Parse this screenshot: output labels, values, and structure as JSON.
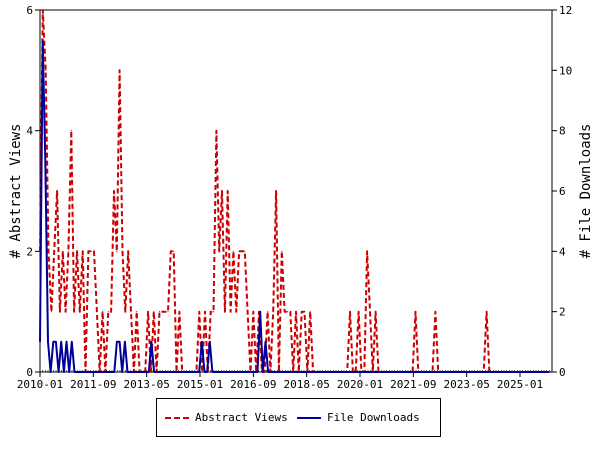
{
  "chart_data": {
    "type": "line",
    "title": "",
    "xlabel": "",
    "ylabel_left": "# Abstract Views",
    "ylabel_right": "# File Downloads",
    "x_tick_labels": [
      "2010-01",
      "2011-09",
      "2013-05",
      "2015-01",
      "2016-09",
      "2018-05",
      "2020-01",
      "2021-09",
      "2023-05",
      "2025-01"
    ],
    "y_left_ticks": [
      "0",
      "2",
      "4",
      "6"
    ],
    "y_right_ticks": [
      "0",
      "2",
      "4",
      "6",
      "8",
      "10",
      "12"
    ],
    "y_left_lim": [
      0,
      6
    ],
    "y_right_lim": [
      0,
      12
    ],
    "x_range": [
      "2010-01",
      "2026-01"
    ],
    "legend_position": "bottom",
    "grid": false,
    "series": [
      {
        "name": "Abstract Views",
        "color": "#cc0000",
        "style": "dashed",
        "axis": "left",
        "values": [
          2,
          6,
          5,
          2,
          1,
          2,
          3,
          1,
          2,
          1,
          2,
          4,
          1,
          2,
          1,
          2,
          0,
          2,
          2,
          2,
          1,
          0,
          1,
          0,
          1,
          1,
          3,
          2,
          5,
          2,
          1,
          2,
          1,
          0,
          1,
          0,
          0,
          0,
          1,
          0,
          1,
          0,
          1,
          1,
          1,
          1,
          2,
          2,
          0,
          1,
          0,
          0,
          0,
          0,
          0,
          0,
          1,
          0,
          1,
          0,
          1,
          1,
          4,
          2,
          3,
          1,
          3,
          1,
          2,
          1,
          2,
          2,
          2,
          1,
          0,
          1,
          0,
          1,
          0,
          0,
          1,
          0,
          1,
          3,
          0,
          2,
          1,
          1,
          1,
          0,
          1,
          0,
          1,
          1,
          0,
          1,
          0,
          0,
          0,
          0,
          0,
          0,
          0,
          0,
          0,
          0,
          0,
          0,
          0,
          1,
          0,
          0,
          1,
          0,
          0,
          2,
          1,
          0,
          1,
          0,
          0,
          0,
          0,
          0,
          0,
          0,
          0,
          0,
          0,
          0,
          0,
          0,
          1,
          0,
          0,
          0,
          0,
          0,
          0,
          1,
          0,
          0,
          0,
          0,
          0,
          0,
          0,
          0,
          0,
          0,
          0,
          0,
          0,
          0,
          0,
          0,
          0,
          1,
          0,
          0,
          0,
          0,
          0,
          0,
          0,
          0,
          0,
          0,
          0,
          0,
          0,
          0,
          0,
          0,
          0,
          0,
          0,
          0,
          0,
          0
        ]
      },
      {
        "name": "File Downloads",
        "color": "#000099",
        "style": "solid",
        "axis": "right",
        "values": [
          1,
          11,
          7,
          1,
          0,
          1,
          1,
          0,
          1,
          0,
          1,
          0,
          1,
          0,
          0,
          0,
          0,
          0,
          0,
          0,
          0,
          0,
          0,
          0,
          0,
          0,
          0,
          0,
          0,
          1,
          1,
          0,
          1,
          0,
          0,
          0,
          0,
          0,
          0,
          0,
          0,
          0,
          1,
          0,
          0,
          0,
          0,
          0,
          0,
          0,
          0,
          0,
          0,
          0,
          0,
          0,
          0,
          0,
          0,
          0,
          0,
          1,
          0,
          0,
          1,
          0,
          0,
          0,
          0,
          0,
          0,
          0,
          0,
          0,
          0,
          0,
          0,
          0,
          0,
          0,
          0,
          0,
          0,
          2,
          0,
          1,
          0,
          0,
          0,
          0,
          0,
          0,
          0,
          0,
          0,
          0,
          0,
          0,
          0,
          0,
          0,
          0,
          0,
          0,
          0,
          0,
          0,
          0,
          0,
          0,
          0,
          0,
          0,
          0,
          0,
          0,
          0,
          0,
          0,
          0,
          0,
          0,
          0,
          0,
          0,
          0,
          0,
          0,
          0,
          0,
          0,
          0,
          0,
          0,
          0,
          0,
          0,
          0,
          0,
          0,
          0,
          0,
          0,
          0,
          0,
          0,
          0,
          0,
          0,
          0,
          0,
          0,
          0,
          0,
          0,
          0,
          0,
          0,
          0,
          0,
          0,
          0,
          0,
          0,
          0,
          0,
          0,
          0,
          0,
          0,
          0,
          0,
          0,
          0,
          0,
          0,
          0,
          0,
          0,
          0,
          0,
          0,
          0,
          0,
          0,
          0,
          0,
          0,
          0,
          0,
          0,
          0,
          0
        ]
      }
    ]
  }
}
